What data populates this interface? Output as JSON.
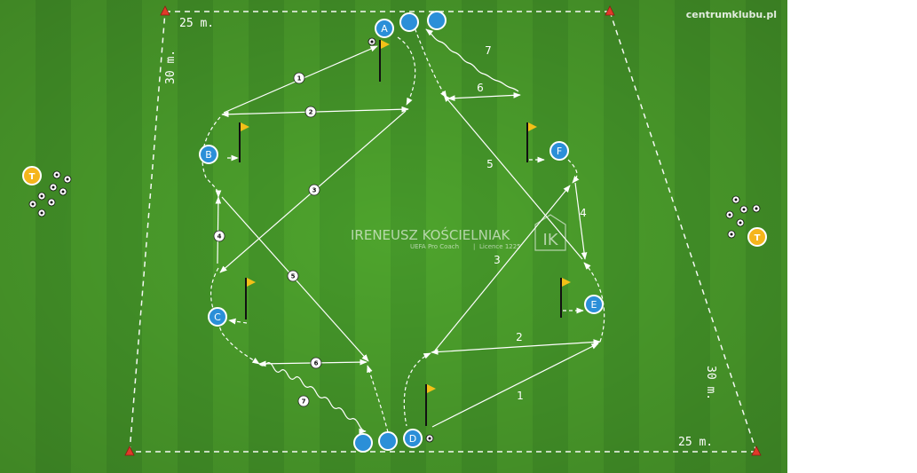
{
  "site_label": "centrumklubu.pl",
  "dimensions": {
    "top_width": "25 m.",
    "bottom_width": "25 m.",
    "left_length": "30 m.",
    "right_length": "30 m."
  },
  "coach": {
    "name": "IRENEUSZ KOŚCIELNIAK",
    "title": "UEFA Pro Coach",
    "separator": "|",
    "licence": "Licence 1225",
    "monogram": "IK"
  },
  "player_labels": [
    "A",
    "B",
    "C",
    "D",
    "E",
    "F"
  ],
  "coach_marker_label": "T",
  "step_numbers": [
    "1",
    "2",
    "3",
    "4",
    "5",
    "6",
    "7"
  ],
  "colors": {
    "pitch_light": "#4fa52e",
    "pitch_dark": "#3f9226",
    "player": "#2b8fd8",
    "coach_marker": "#f5b51c",
    "flag": "#f2c018",
    "cone": "#e03a2a",
    "lines": "#ffffff"
  }
}
